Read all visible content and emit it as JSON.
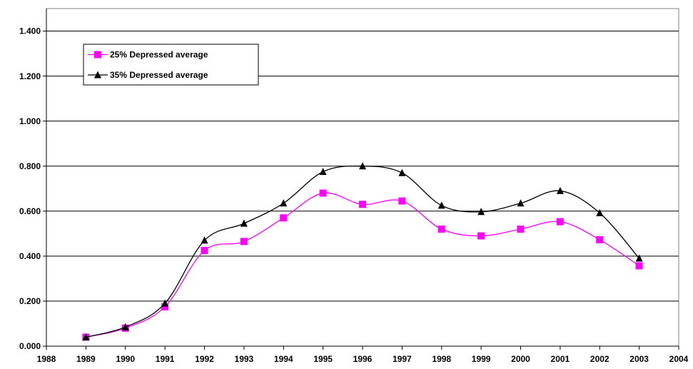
{
  "chart_data": {
    "type": "line",
    "smooth": true,
    "grid": true,
    "legend": "upper-left",
    "x": [
      1989,
      1990,
      1991,
      1992,
      1993,
      1994,
      1995,
      1996,
      1997,
      1998,
      1999,
      2000,
      2001,
      2002,
      2003
    ],
    "series": [
      {
        "name": "25% Depressed average",
        "color": "#ff00ff",
        "marker": "square",
        "values": [
          0.04,
          0.08,
          0.175,
          0.425,
          0.465,
          0.57,
          0.68,
          0.63,
          0.645,
          0.52,
          0.49,
          0.52,
          0.553,
          0.473,
          0.357
        ]
      },
      {
        "name": "35% Depressed average",
        "color": "#000000",
        "marker": "triangle",
        "values": [
          0.04,
          0.085,
          0.19,
          0.47,
          0.545,
          0.635,
          0.775,
          0.8,
          0.77,
          0.625,
          0.597,
          0.635,
          0.69,
          0.592,
          0.39
        ]
      }
    ],
    "xlim": [
      1988,
      2004
    ],
    "xticks": [
      1988,
      1989,
      1990,
      1991,
      1992,
      1993,
      1994,
      1995,
      1996,
      1997,
      1998,
      1999,
      2000,
      2001,
      2002,
      2003,
      2004
    ],
    "ylim": [
      0,
      1.5
    ],
    "yticks": [
      {
        "value": 0,
        "label": "0.000"
      },
      {
        "value": 0.2,
        "label": "0.200"
      },
      {
        "value": 0.4,
        "label": "0.400"
      },
      {
        "value": 0.6,
        "label": "0.600"
      },
      {
        "value": 0.8,
        "label": "0.800"
      },
      {
        "value": 1.0,
        "label": "1.000"
      },
      {
        "value": 1.2,
        "label": "1.200"
      },
      {
        "value": 1.4,
        "label": "1.400"
      }
    ]
  }
}
